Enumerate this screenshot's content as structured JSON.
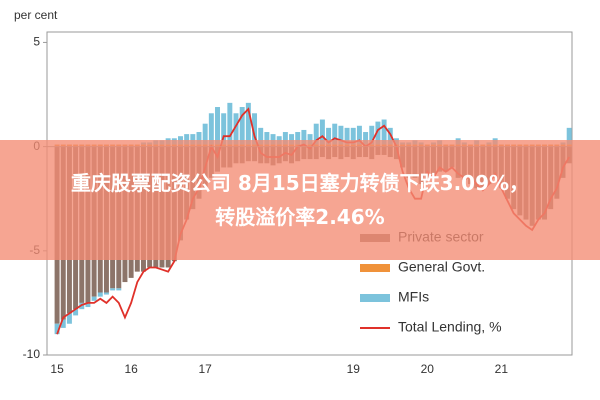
{
  "chart_data": {
    "type": "bar-line",
    "y_label": "per cent",
    "categories": [
      "15",
      null,
      null,
      null,
      null,
      null,
      null,
      null,
      null,
      null,
      null,
      null,
      "16",
      null,
      null,
      null,
      null,
      null,
      null,
      null,
      null,
      null,
      null,
      null,
      "17",
      null,
      null,
      null,
      null,
      null,
      null,
      null,
      null,
      null,
      null,
      null,
      null,
      null,
      null,
      null,
      null,
      null,
      null,
      null,
      null,
      null,
      null,
      null,
      "19",
      null,
      null,
      null,
      null,
      null,
      null,
      null,
      null,
      null,
      null,
      null,
      "20",
      null,
      null,
      null,
      null,
      null,
      null,
      null,
      null,
      null,
      null,
      null,
      "21",
      null,
      null,
      null,
      null,
      null,
      null,
      null,
      null,
      null,
      null,
      null
    ],
    "series": [
      {
        "name": "Private sector",
        "color": "#8c7469",
        "kind": "bar",
        "values": [
          -8.5,
          -8.3,
          -8,
          -7.8,
          -7.5,
          -7.5,
          -7.2,
          -7,
          -7,
          -6.8,
          -6.8,
          -6.5,
          -6.3,
          -6,
          -6,
          -5.8,
          -5.8,
          -5.8,
          -5.8,
          -5.5,
          -4.5,
          -3.5,
          -3,
          -2.5,
          -2,
          -1.5,
          -1.2,
          -1,
          -1,
          -0.8,
          -0.8,
          -0.7,
          -0.7,
          -0.8,
          -0.8,
          -0.9,
          -0.8,
          -0.7,
          -0.8,
          -0.7,
          -0.6,
          -0.6,
          -0.6,
          -0.5,
          -0.6,
          -0.5,
          -0.6,
          -0.5,
          -0.6,
          -0.5,
          -0.5,
          -0.6,
          -0.4,
          -0.4,
          -0.5,
          -0.6,
          -1,
          -1.5,
          -1.5,
          -1.8,
          -1.5,
          -1.5,
          -1.2,
          -1.2,
          -1,
          -1.5,
          -1.6,
          -1.8,
          -2,
          -2,
          -1.8,
          -1.5,
          -2,
          -2.5,
          -3,
          -3.3,
          -3.5,
          -3.8,
          -3.5,
          -3.5,
          -3,
          -2.5,
          -1.5,
          -0.8
        ]
      },
      {
        "name": "General Govt.",
        "color": "#f0923a",
        "kind": "bar",
        "values": [
          0.1,
          0.1,
          0.1,
          0.1,
          0.1,
          0.1,
          0.1,
          0.1,
          0.1,
          0.1,
          0.1,
          0.1,
          0.1,
          0.1,
          0.1,
          0.1,
          0.1,
          0.1,
          0.1,
          0.1,
          0.1,
          0.1,
          0.1,
          0.1,
          0.1,
          0.1,
          0.1,
          0.1,
          0.1,
          0.1,
          0.1,
          0.1,
          0.1,
          0.1,
          0.1,
          0.1,
          0.1,
          0.1,
          0.1,
          0.1,
          0.1,
          0.1,
          0.1,
          0.1,
          0.1,
          0.1,
          0.1,
          0.1,
          0.1,
          0.1,
          0.1,
          0.1,
          0.1,
          0.1,
          0.1,
          0.1,
          0.1,
          0.1,
          0.1,
          0.1,
          0.1,
          0.1,
          0.1,
          0.1,
          0.1,
          0.1,
          0.1,
          0.1,
          0.1,
          0.1,
          0.1,
          0.1,
          0.1,
          0.1,
          0.1,
          0.1,
          0.1,
          0.1,
          0.1,
          0.1,
          0.1,
          0.1,
          0.1,
          0.1
        ]
      },
      {
        "name": "MFIs",
        "color": "#7cc3dc",
        "kind": "bar",
        "values": [
          -0.5,
          -0.4,
          -0.5,
          -0.3,
          -0.3,
          -0.2,
          -0.2,
          -0.2,
          -0.1,
          -0.1,
          -0.1,
          0,
          0,
          0,
          0.1,
          0.1,
          0.2,
          0.2,
          0.3,
          0.3,
          0.4,
          0.5,
          0.5,
          0.6,
          1,
          1.5,
          1.8,
          1.5,
          2,
          1.5,
          1.8,
          2,
          1.5,
          0.8,
          0.6,
          0.5,
          0.4,
          0.6,
          0.5,
          0.6,
          0.7,
          0.5,
          1,
          1.2,
          0.8,
          1,
          0.9,
          0.8,
          0.8,
          0.9,
          0.6,
          0.9,
          1.1,
          1.2,
          0.8,
          0.3,
          0.1,
          0.1,
          0.2,
          0.1,
          0,
          0.1,
          0.2,
          0,
          0,
          0.3,
          0.1,
          0,
          0.2,
          0,
          0.1,
          0.3,
          0,
          0,
          0,
          0,
          0,
          0,
          0,
          0,
          0,
          0,
          0.1,
          0.8
        ]
      },
      {
        "name": "Total Lending, %",
        "color": "#e0312a",
        "kind": "line",
        "values": [
          -9,
          -8.2,
          -8,
          -7.8,
          -7.6,
          -7.5,
          -7.5,
          -7.3,
          -7.5,
          -7.2,
          -7.5,
          -8.2,
          -7.5,
          -6.5,
          -6,
          -5.8,
          -5.8,
          -5.9,
          -6,
          -5.5,
          -4.2,
          -3.5,
          -2.5,
          -2,
          -1,
          0,
          -0.5,
          0.5,
          0.5,
          1,
          1.5,
          1.8,
          0.5,
          -0.3,
          -0.5,
          -0.5,
          -0.5,
          -0.3,
          -0.4,
          0,
          0.1,
          -0.1,
          0.3,
          0.5,
          0.2,
          0.4,
          0.3,
          0.2,
          0.2,
          0.3,
          0,
          0.2,
          0.8,
          1,
          0.6,
          0,
          -1.2,
          -2,
          -2.5,
          -2.5,
          -1.2,
          -1.5,
          -1,
          -1.2,
          -1,
          -1.3,
          -1.5,
          -1.5,
          -1.8,
          -2.1,
          -1.8,
          -1.3,
          -2,
          -2.6,
          -3.2,
          -3.5,
          -3.8,
          -4,
          -3.5,
          -3.2,
          -2.5,
          -2,
          -1,
          -0.5
        ]
      }
    ],
    "ylim": [
      -10,
      5.5
    ],
    "yticks": [
      5,
      0,
      -5,
      -10
    ],
    "legend": "bottom-right"
  },
  "banner": {
    "lines": [
      "重庆股票配资公司 8月15日塞力转债下跌3.09%，",
      "转股溢价率2.46%"
    ]
  }
}
